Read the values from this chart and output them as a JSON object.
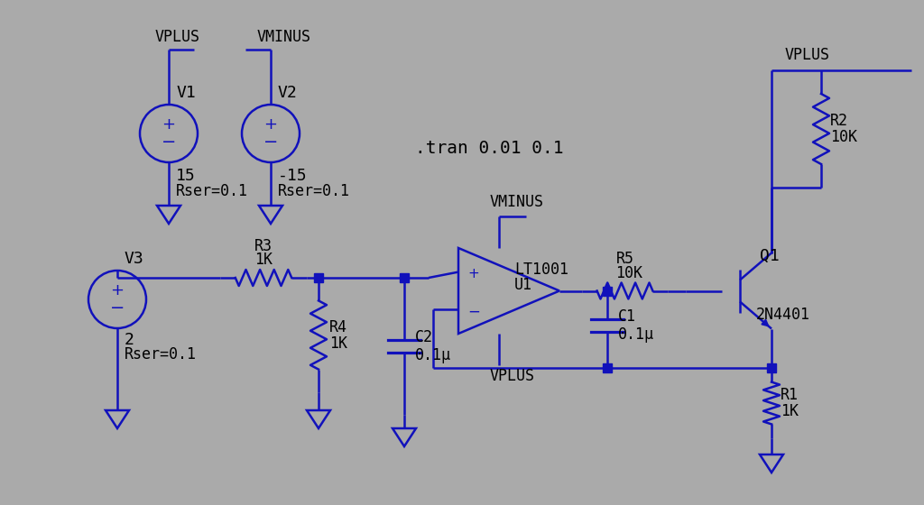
{
  "bg": "#aaaaaa",
  "lc": "#1111bb",
  "tc": "#000000",
  "lw": 1.8,
  "ns": 7,
  "tran": ".tran 0.01 0.1",
  "V1_label": "V1",
  "V1_val": "15",
  "V1_rser": "Rser=0.1",
  "V1_net": "VPLUS",
  "V2_label": "V2",
  "V2_val": "-15",
  "V2_rser": "Rser=0.1",
  "V2_net": "VMINUS",
  "V3_label": "V3",
  "V3_val": "2",
  "V3_rser": "Rser=0.1",
  "R1_l": "R1",
  "R1_v": "1K",
  "R2_l": "R2",
  "R2_v": "10K",
  "R3_l": "R3",
  "R3_v": "1K",
  "R4_l": "R4",
  "R4_v": "1K",
  "R5_l": "R5",
  "R5_v": "10K",
  "C1_l": "C1",
  "C1_v": "0.1μ",
  "C2_l": "C2",
  "C2_v": "0.1μ",
  "U1_l": "U1",
  "U1_ic": "LT1001",
  "Q1_l": "Q1",
  "Q1_m": "2N4401",
  "vplus": "VPLUS",
  "vminus": "VMINUS"
}
